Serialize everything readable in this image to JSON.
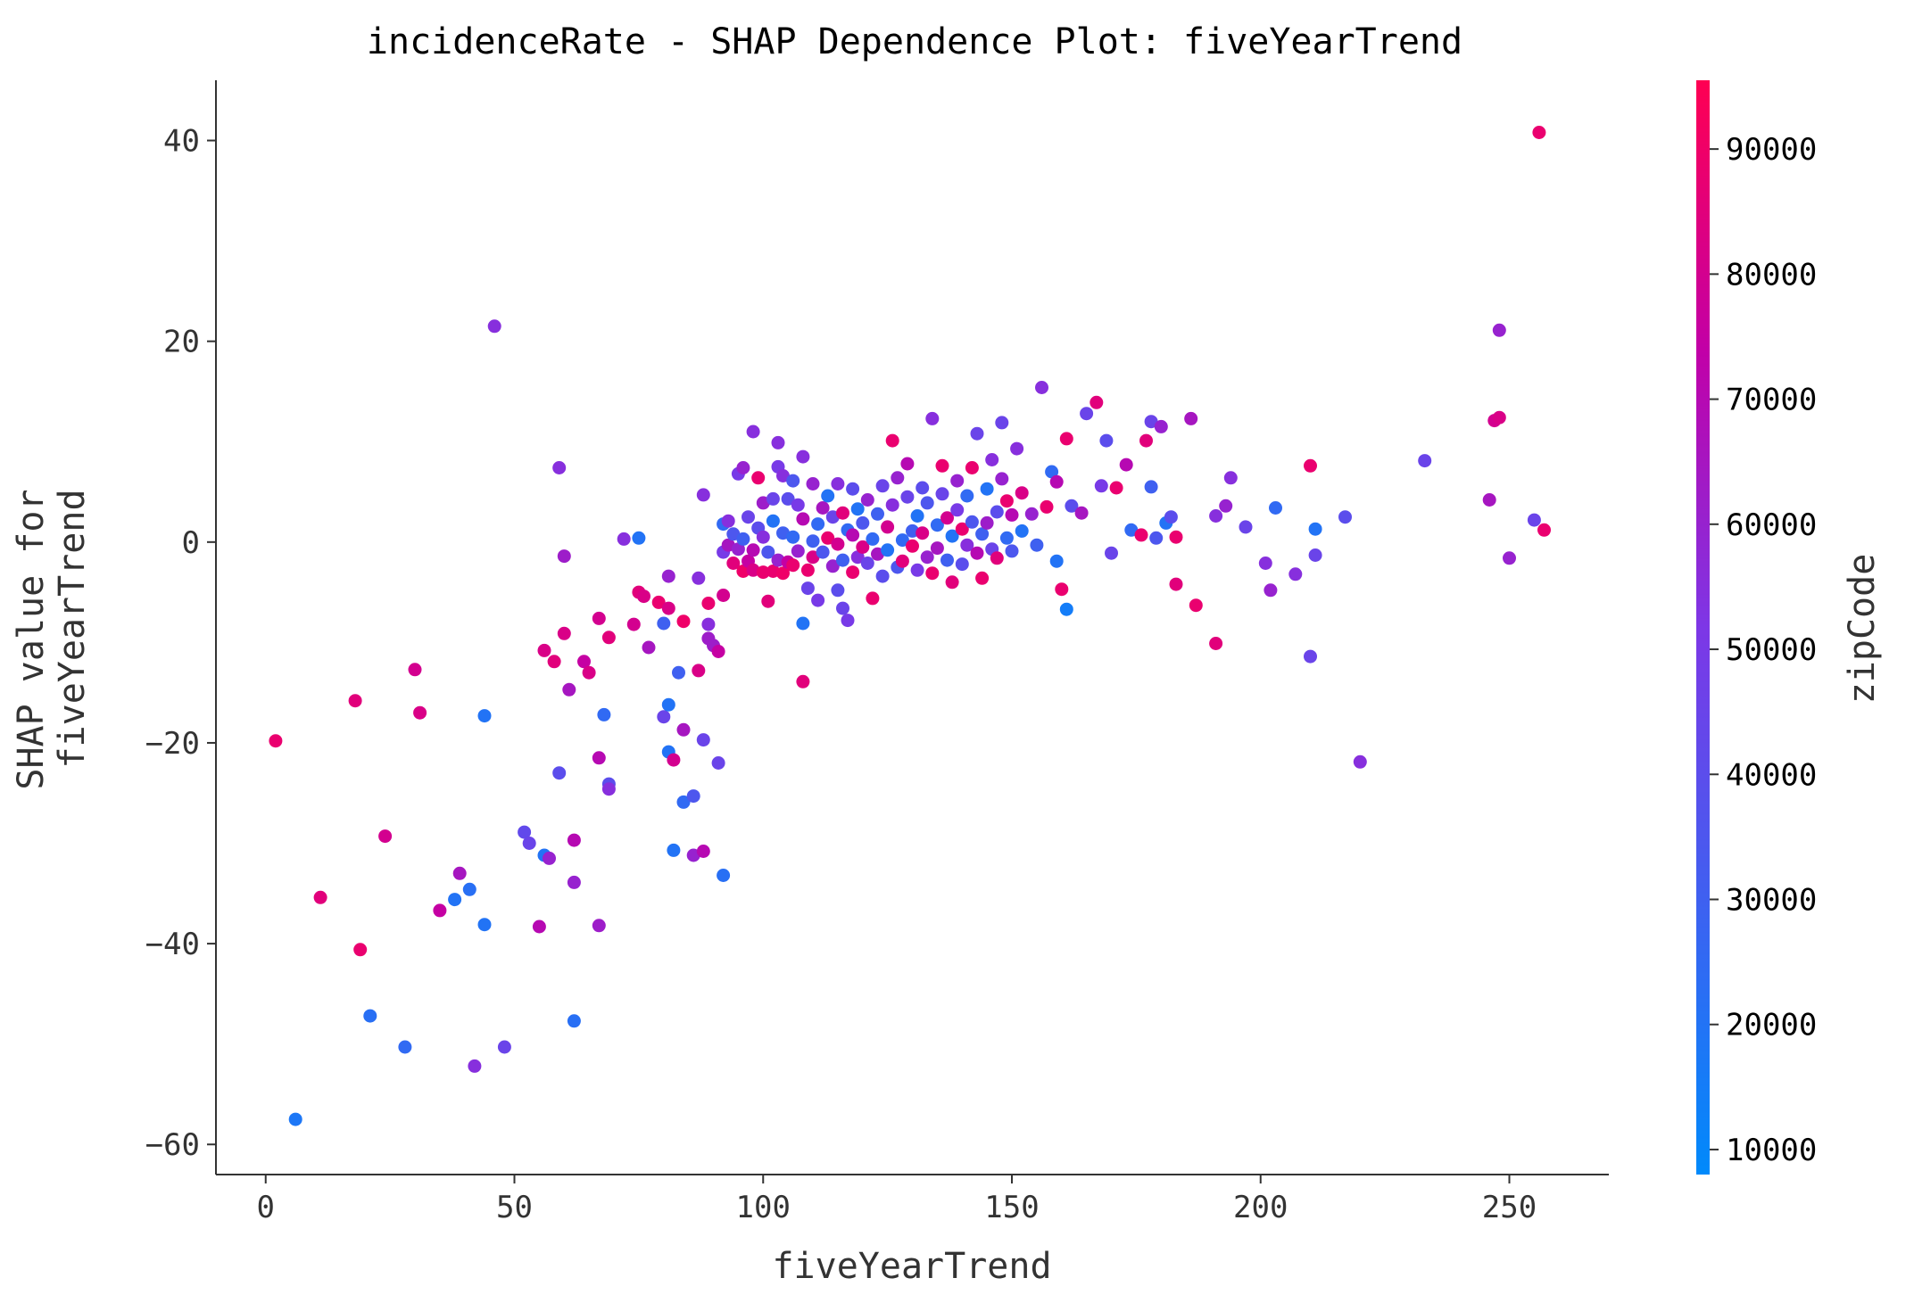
{
  "chart_data": {
    "type": "scatter",
    "title": "incidenceRate - SHAP Dependence Plot: fiveYearTrend",
    "xlabel": "fiveYearTrend",
    "ylabel": [
      "SHAP value for",
      "fiveYearTrend"
    ],
    "xlim": [
      -10,
      270
    ],
    "ylim": [
      -63,
      46
    ],
    "xticks": [
      0,
      50,
      100,
      150,
      200,
      250
    ],
    "yticks": [
      -60,
      -40,
      -20,
      0,
      20,
      40
    ],
    "grid": false,
    "colorbar": {
      "label": "zipCode",
      "range": [
        8000,
        95500
      ],
      "ticks": [
        10000,
        20000,
        30000,
        40000,
        50000,
        60000,
        70000,
        80000,
        90000
      ],
      "colors": [
        "#008afb",
        "#ff0052"
      ]
    },
    "points": [
      [
        2,
        -19.8,
        88000
      ],
      [
        6,
        -57.5,
        18000
      ],
      [
        11,
        -35.4,
        85000
      ],
      [
        18,
        -15.8,
        85000
      ],
      [
        19,
        -40.6,
        88000
      ],
      [
        21,
        -47.2,
        22000
      ],
      [
        24,
        -29.3,
        80000
      ],
      [
        28,
        -50.3,
        25000
      ],
      [
        30,
        -12.7,
        80000
      ],
      [
        31,
        -17.0,
        82000
      ],
      [
        35,
        -36.7,
        75000
      ],
      [
        38,
        -35.6,
        20000
      ],
      [
        39,
        -33.0,
        65000
      ],
      [
        41,
        -34.6,
        22000
      ],
      [
        42,
        -52.2,
        55000
      ],
      [
        44,
        -17.3,
        20000
      ],
      [
        44,
        -38.1,
        20000
      ],
      [
        46,
        21.5,
        55000
      ],
      [
        48,
        -50.3,
        45000
      ],
      [
        52,
        -28.9,
        42000
      ],
      [
        53,
        -30.0,
        45000
      ],
      [
        55,
        -38.3,
        70000
      ],
      [
        56,
        -31.2,
        20000
      ],
      [
        56,
        -10.8,
        82000
      ],
      [
        57,
        -31.5,
        60000
      ],
      [
        58,
        -11.9,
        85000
      ],
      [
        59,
        -23.0,
        40000
      ],
      [
        59,
        7.4,
        55000
      ],
      [
        60,
        -9.1,
        82000
      ],
      [
        60,
        -1.4,
        62000
      ],
      [
        61,
        -14.7,
        65000
      ],
      [
        62,
        -29.7,
        70000
      ],
      [
        62,
        -47.7,
        22000
      ],
      [
        62,
        -33.9,
        60000
      ],
      [
        64,
        -11.9,
        75000
      ],
      [
        65,
        -13.0,
        82000
      ],
      [
        67,
        -21.5,
        70000
      ],
      [
        67,
        -7.6,
        80000
      ],
      [
        67,
        -38.2,
        62000
      ],
      [
        68,
        -17.2,
        25000
      ],
      [
        69,
        -24.1,
        40000
      ],
      [
        69,
        -24.6,
        55000
      ],
      [
        69,
        -9.5,
        85000
      ],
      [
        72,
        0.3,
        55000
      ],
      [
        74,
        -8.2,
        80000
      ],
      [
        75,
        0.4,
        20000
      ],
      [
        75,
        -5.0,
        85000
      ],
      [
        76,
        -5.4,
        82000
      ],
      [
        77,
        -10.5,
        65000
      ],
      [
        79,
        -6.0,
        88000
      ],
      [
        80,
        -17.4,
        45000
      ],
      [
        80,
        -8.1,
        30000
      ],
      [
        81,
        -16.2,
        20000
      ],
      [
        81,
        -20.9,
        20000
      ],
      [
        81,
        -3.4,
        60000
      ],
      [
        81,
        -6.6,
        82000
      ],
      [
        82,
        -30.7,
        20000
      ],
      [
        82,
        -21.7,
        80000
      ],
      [
        83,
        -13.0,
        30000
      ],
      [
        84,
        -25.9,
        25000
      ],
      [
        84,
        -7.9,
        90000
      ],
      [
        84,
        -18.7,
        65000
      ],
      [
        86,
        -25.3,
        35000
      ],
      [
        86,
        -31.2,
        60000
      ],
      [
        87,
        -3.6,
        55000
      ],
      [
        87,
        -12.8,
        82000
      ],
      [
        88,
        -30.8,
        70000
      ],
      [
        88,
        -19.7,
        45000
      ],
      [
        88,
        4.7,
        55000
      ],
      [
        89,
        -6.1,
        88000
      ],
      [
        89,
        -9.6,
        62000
      ],
      [
        89,
        -8.2,
        55000
      ],
      [
        90,
        -10.3,
        62000
      ],
      [
        91,
        -22.0,
        45000
      ],
      [
        91,
        -10.9,
        75000
      ],
      [
        92,
        -33.2,
        22000
      ],
      [
        92,
        -5.3,
        80000
      ],
      [
        92,
        -1.0,
        50000
      ],
      [
        92,
        1.8,
        25000
      ],
      [
        93,
        2.1,
        55000
      ],
      [
        93,
        -0.3,
        65000
      ],
      [
        94,
        0.8,
        35000
      ],
      [
        94,
        -2.1,
        85000
      ],
      [
        95,
        -0.7,
        60000
      ],
      [
        95,
        6.8,
        50000
      ],
      [
        96,
        -2.9,
        90000
      ],
      [
        96,
        0.3,
        30000
      ],
      [
        96,
        7.4,
        60000
      ],
      [
        97,
        -1.9,
        75000
      ],
      [
        97,
        2.5,
        45000
      ],
      [
        98,
        11.0,
        55000
      ],
      [
        98,
        -0.8,
        70000
      ],
      [
        98,
        -2.8,
        82000
      ],
      [
        99,
        1.4,
        40000
      ],
      [
        99,
        6.4,
        88000
      ],
      [
        100,
        -3.0,
        88000
      ],
      [
        100,
        0.5,
        55000
      ],
      [
        100,
        3.9,
        62000
      ],
      [
        101,
        -5.9,
        85000
      ],
      [
        101,
        -1.0,
        35000
      ],
      [
        102,
        2.1,
        20000
      ],
      [
        102,
        4.3,
        45000
      ],
      [
        102,
        -2.9,
        88000
      ],
      [
        103,
        -1.8,
        60000
      ],
      [
        103,
        7.5,
        50000
      ],
      [
        103,
        9.9,
        55000
      ],
      [
        104,
        0.9,
        30000
      ],
      [
        104,
        -3.1,
        90000
      ],
      [
        104,
        6.6,
        55000
      ],
      [
        105,
        -2.0,
        75000
      ],
      [
        105,
        4.3,
        40000
      ],
      [
        106,
        0.5,
        25000
      ],
      [
        106,
        -2.3,
        88000
      ],
      [
        106,
        6.1,
        35000
      ],
      [
        107,
        -0.9,
        60000
      ],
      [
        107,
        3.7,
        50000
      ],
      [
        108,
        -13.9,
        85000
      ],
      [
        108,
        -8.1,
        20000
      ],
      [
        108,
        2.3,
        70000
      ],
      [
        108,
        8.5,
        55000
      ],
      [
        109,
        -2.8,
        88000
      ],
      [
        109,
        -4.6,
        45000
      ],
      [
        110,
        0.1,
        30000
      ],
      [
        110,
        5.8,
        60000
      ],
      [
        110,
        -1.5,
        82000
      ],
      [
        111,
        1.8,
        25000
      ],
      [
        111,
        -5.8,
        50000
      ],
      [
        112,
        3.4,
        65000
      ],
      [
        112,
        -1.0,
        35000
      ],
      [
        113,
        0.4,
        88000
      ],
      [
        113,
        4.6,
        20000
      ],
      [
        114,
        -2.4,
        60000
      ],
      [
        114,
        2.5,
        45000
      ],
      [
        115,
        -4.8,
        40000
      ],
      [
        115,
        -0.2,
        80000
      ],
      [
        115,
        5.8,
        55000
      ],
      [
        116,
        -1.8,
        30000
      ],
      [
        116,
        2.9,
        85000
      ],
      [
        116,
        -6.6,
        45000
      ],
      [
        117,
        -7.8,
        50000
      ],
      [
        117,
        1.2,
        25000
      ],
      [
        118,
        0.7,
        70000
      ],
      [
        118,
        5.3,
        40000
      ],
      [
        118,
        -3.0,
        88000
      ],
      [
        119,
        3.3,
        20000
      ],
      [
        119,
        -1.5,
        55000
      ],
      [
        120,
        1.9,
        35000
      ],
      [
        120,
        -0.5,
        82000
      ],
      [
        121,
        4.2,
        60000
      ],
      [
        121,
        -2.1,
        45000
      ],
      [
        122,
        0.3,
        25000
      ],
      [
        122,
        -5.6,
        88000
      ],
      [
        123,
        2.8,
        30000
      ],
      [
        123,
        -1.2,
        65000
      ],
      [
        124,
        5.6,
        45000
      ],
      [
        124,
        -3.4,
        40000
      ],
      [
        125,
        1.5,
        80000
      ],
      [
        125,
        -0.8,
        20000
      ],
      [
        126,
        10.1,
        88000
      ],
      [
        126,
        3.7,
        55000
      ],
      [
        127,
        -2.5,
        35000
      ],
      [
        127,
        6.4,
        60000
      ],
      [
        128,
        0.2,
        25000
      ],
      [
        128,
        -1.9,
        85000
      ],
      [
        129,
        4.5,
        45000
      ],
      [
        129,
        7.8,
        70000
      ],
      [
        130,
        1.1,
        30000
      ],
      [
        130,
        -0.4,
        88000
      ],
      [
        131,
        2.6,
        20000
      ],
      [
        131,
        -2.8,
        50000
      ],
      [
        132,
        5.4,
        40000
      ],
      [
        132,
        0.9,
        82000
      ],
      [
        133,
        -1.5,
        60000
      ],
      [
        133,
        3.9,
        35000
      ],
      [
        134,
        12.3,
        55000
      ],
      [
        134,
        -3.1,
        88000
      ],
      [
        135,
        1.7,
        25000
      ],
      [
        135,
        -0.6,
        65000
      ],
      [
        136,
        4.8,
        45000
      ],
      [
        136,
        7.6,
        88000
      ],
      [
        137,
        -1.8,
        30000
      ],
      [
        137,
        2.4,
        80000
      ],
      [
        138,
        0.6,
        20000
      ],
      [
        138,
        -4.0,
        85000
      ],
      [
        139,
        3.2,
        50000
      ],
      [
        139,
        6.1,
        60000
      ],
      [
        140,
        -2.2,
        40000
      ],
      [
        140,
        1.3,
        88000
      ],
      [
        141,
        4.6,
        25000
      ],
      [
        141,
        -0.3,
        55000
      ],
      [
        142,
        7.4,
        88000
      ],
      [
        142,
        2.0,
        35000
      ],
      [
        143,
        -1.1,
        70000
      ],
      [
        143,
        10.8,
        45000
      ],
      [
        144,
        0.8,
        30000
      ],
      [
        144,
        -3.6,
        88000
      ],
      [
        145,
        5.3,
        20000
      ],
      [
        145,
        1.9,
        62000
      ],
      [
        146,
        -0.7,
        45000
      ],
      [
        146,
        8.2,
        55000
      ],
      [
        147,
        3.0,
        40000
      ],
      [
        147,
        -1.6,
        85000
      ],
      [
        148,
        6.3,
        60000
      ],
      [
        148,
        11.9,
        45000
      ],
      [
        149,
        0.4,
        25000
      ],
      [
        149,
        4.1,
        88000
      ],
      [
        150,
        -0.9,
        35000
      ],
      [
        150,
        2.7,
        70000
      ],
      [
        151,
        9.3,
        55000
      ],
      [
        152,
        1.1,
        20000
      ],
      [
        152,
        4.9,
        82000
      ],
      [
        154,
        2.8,
        60000
      ],
      [
        155,
        -0.3,
        30000
      ],
      [
        156,
        15.4,
        55000
      ],
      [
        157,
        3.5,
        88000
      ],
      [
        158,
        7.0,
        25000
      ],
      [
        159,
        -1.9,
        20000
      ],
      [
        159,
        6.0,
        70000
      ],
      [
        160,
        -4.7,
        88000
      ],
      [
        161,
        -6.7,
        15000
      ],
      [
        161,
        10.3,
        88000
      ],
      [
        162,
        3.6,
        40000
      ],
      [
        164,
        2.9,
        65000
      ],
      [
        165,
        12.8,
        45000
      ],
      [
        167,
        13.9,
        85000
      ],
      [
        168,
        5.6,
        50000
      ],
      [
        169,
        10.1,
        40000
      ],
      [
        170,
        -1.1,
        45000
      ],
      [
        171,
        5.4,
        88000
      ],
      [
        173,
        7.7,
        70000
      ],
      [
        174,
        1.2,
        25000
      ],
      [
        176,
        0.7,
        88000
      ],
      [
        177,
        10.1,
        85000
      ],
      [
        178,
        12.0,
        45000
      ],
      [
        178,
        5.5,
        30000
      ],
      [
        179,
        0.4,
        35000
      ],
      [
        180,
        11.5,
        60000
      ],
      [
        181,
        1.9,
        20000
      ],
      [
        182,
        2.5,
        40000
      ],
      [
        183,
        0.5,
        88000
      ],
      [
        183,
        -4.2,
        85000
      ],
      [
        186,
        12.3,
        65000
      ],
      [
        187,
        -6.3,
        88000
      ],
      [
        191,
        -10.1,
        85000
      ],
      [
        191,
        2.6,
        55000
      ],
      [
        193,
        3.6,
        60000
      ],
      [
        194,
        6.4,
        55000
      ],
      [
        197,
        1.5,
        45000
      ],
      [
        201,
        -2.1,
        55000
      ],
      [
        202,
        -4.8,
        60000
      ],
      [
        203,
        3.4,
        25000
      ],
      [
        207,
        -3.2,
        55000
      ],
      [
        210,
        7.6,
        88000
      ],
      [
        210,
        -11.4,
        45000
      ],
      [
        211,
        1.3,
        20000
      ],
      [
        211,
        -1.3,
        45000
      ],
      [
        217,
        2.5,
        40000
      ],
      [
        220,
        -21.9,
        55000
      ],
      [
        233,
        8.1,
        45000
      ],
      [
        246,
        4.2,
        65000
      ],
      [
        247,
        12.1,
        80000
      ],
      [
        248,
        12.4,
        82000
      ],
      [
        248,
        21.1,
        60000
      ],
      [
        250,
        -1.6,
        60000
      ],
      [
        255,
        2.2,
        45000
      ],
      [
        256,
        40.8,
        88000
      ],
      [
        257,
        1.2,
        88000
      ]
    ]
  }
}
